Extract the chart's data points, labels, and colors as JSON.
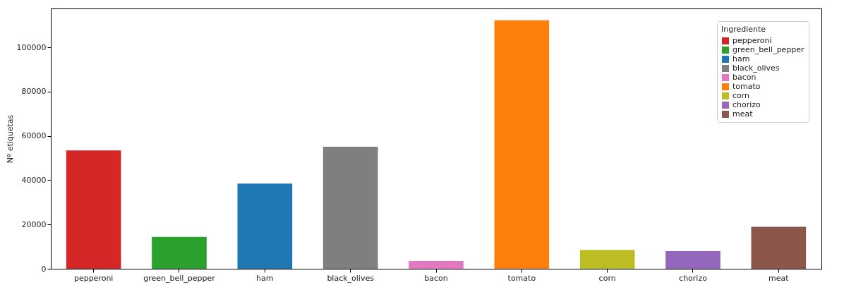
{
  "chart_data": {
    "type": "bar",
    "ylabel": "Nº etiquetas",
    "legend_title": "Ingrediente",
    "legend": "top right",
    "grid": false,
    "stacked": true,
    "categories": [
      "pepperoni",
      "green_bell_pepper",
      "ham",
      "black_olives",
      "bacon",
      "tomato",
      "corn",
      "chorizo",
      "meat"
    ],
    "series": [
      {
        "name": "pepperoni",
        "color": "#d62728",
        "values": [
          53500,
          null,
          null,
          null,
          null,
          null,
          null,
          null,
          null
        ]
      },
      {
        "name": "green_bell_pepper",
        "color": "#2ca02c",
        "values": [
          null,
          14400,
          null,
          null,
          null,
          null,
          null,
          null,
          null
        ]
      },
      {
        "name": "ham",
        "color": "#1f77b4",
        "values": [
          null,
          null,
          38500,
          null,
          null,
          null,
          null,
          null,
          null
        ]
      },
      {
        "name": "black_olives",
        "color": "#7f7f7f",
        "values": [
          null,
          null,
          null,
          55100,
          null,
          null,
          null,
          null,
          null
        ]
      },
      {
        "name": "bacon",
        "color": "#e377c2",
        "values": [
          null,
          null,
          null,
          null,
          3500,
          null,
          null,
          null,
          null
        ]
      },
      {
        "name": "tomato",
        "color": "#ff7f0e",
        "values": [
          null,
          null,
          null,
          null,
          null,
          112300,
          null,
          null,
          null
        ]
      },
      {
        "name": "corn",
        "color": "#bcbd22",
        "values": [
          null,
          null,
          null,
          null,
          null,
          null,
          8500,
          null,
          null
        ]
      },
      {
        "name": "chorizo",
        "color": "#9467bd",
        "values": [
          null,
          null,
          null,
          null,
          null,
          null,
          null,
          8000,
          null
        ]
      },
      {
        "name": "meat",
        "color": "#8c564b",
        "values": [
          null,
          null,
          null,
          null,
          null,
          null,
          null,
          null,
          19000
        ]
      }
    ],
    "ylim": [
      0,
      117600
    ],
    "yticks": [
      0,
      20000,
      40000,
      60000,
      80000,
      100000
    ]
  }
}
